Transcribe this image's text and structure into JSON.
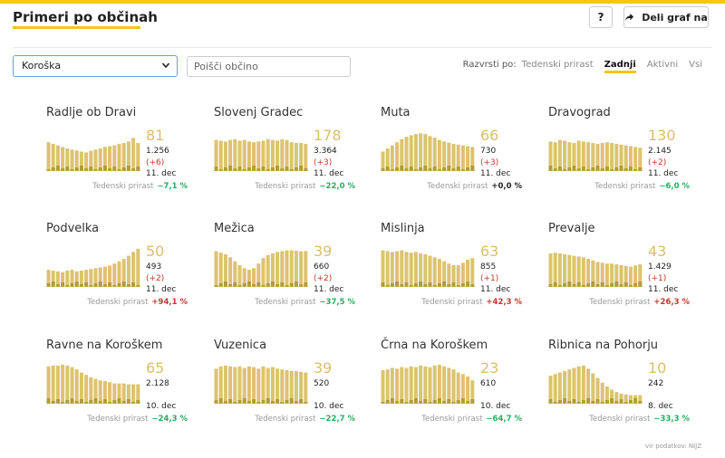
{
  "header": {
    "title": "Primeri po občinah",
    "help_label": "?",
    "share_label": "Deli graf na"
  },
  "filters": {
    "region_selected": "Koroška",
    "search_placeholder": "Poišči občino"
  },
  "sort": {
    "label": "Razvrsti po:",
    "options": [
      "Tedenski prirast",
      "Zadnji",
      "Aktivni",
      "Vsi"
    ],
    "active": "Zadnji"
  },
  "weekly_label": "Tedenski prirast",
  "colors": {
    "accent": "#f5c518",
    "bar": "#dcc36e",
    "bar_dark": "#b39a3a",
    "down": "#27ae60",
    "up": "#c0392b"
  },
  "cards": [
    {
      "name": "Radlje ob Dravi",
      "value": "81",
      "total": "1.256",
      "delta": "(+6)",
      "date": "11. dec",
      "weekly": "−7,1 %",
      "trend": "down",
      "series": [
        0.74,
        0.7,
        0.66,
        0.62,
        0.58,
        0.55,
        0.53,
        0.5,
        0.48,
        0.52,
        0.55,
        0.58,
        0.62,
        0.64,
        0.66,
        0.7,
        0.72,
        0.76,
        0.85,
        0.72
      ]
    },
    {
      "name": "Slovenj Gradec",
      "value": "178",
      "total": "3.364",
      "delta": "(+3)",
      "date": "11. dec",
      "weekly": "−22,0 %",
      "trend": "down",
      "series": [
        0.8,
        0.78,
        0.76,
        0.8,
        0.82,
        0.78,
        0.8,
        0.76,
        0.74,
        0.76,
        0.78,
        0.82,
        0.8,
        0.78,
        0.82,
        0.8,
        0.74,
        0.72,
        0.72,
        0.7
      ]
    },
    {
      "name": "Muta",
      "value": "66",
      "total": "730",
      "delta": "(+3)",
      "date": "11. dec",
      "weekly": "+0,0 %",
      "trend": "flat",
      "series": [
        0.5,
        0.58,
        0.66,
        0.74,
        0.82,
        0.88,
        0.92,
        0.95,
        0.97,
        0.95,
        0.9,
        0.86,
        0.8,
        0.76,
        0.73,
        0.7,
        0.68,
        0.66,
        0.64,
        0.62
      ]
    },
    {
      "name": "Dravograd",
      "value": "130",
      "total": "2.145",
      "delta": "(+2)",
      "date": "11. dec",
      "weekly": "−6,0 %",
      "trend": "down",
      "series": [
        0.76,
        0.74,
        0.8,
        0.78,
        0.74,
        0.72,
        0.78,
        0.76,
        0.74,
        0.72,
        0.7,
        0.72,
        0.74,
        0.72,
        0.7,
        0.68,
        0.66,
        0.64,
        0.62,
        0.6
      ]
    },
    {
      "name": "Podvelka",
      "value": "50",
      "total": "493",
      "delta": "(+2)",
      "date": "11. dec",
      "weekly": "+94,1 %",
      "trend": "up",
      "series": [
        0.44,
        0.42,
        0.4,
        0.38,
        0.42,
        0.44,
        0.4,
        0.42,
        0.44,
        0.46,
        0.48,
        0.5,
        0.52,
        0.55,
        0.6,
        0.66,
        0.72,
        0.8,
        0.9,
        0.98
      ]
    },
    {
      "name": "Mežica",
      "value": "39",
      "total": "660",
      "delta": "(+2)",
      "date": "11. dec",
      "weekly": "−37,5 %",
      "trend": "down",
      "series": [
        0.92,
        0.88,
        0.84,
        0.76,
        0.66,
        0.56,
        0.48,
        0.44,
        0.48,
        0.6,
        0.74,
        0.82,
        0.86,
        0.9,
        0.92,
        0.94,
        0.94,
        0.93,
        0.92,
        0.92
      ]
    },
    {
      "name": "Mislinja",
      "value": "63",
      "total": "855",
      "delta": "(+1)",
      "date": "11. dec",
      "weekly": "+42,3 %",
      "trend": "up",
      "series": [
        0.94,
        0.92,
        0.9,
        0.92,
        0.94,
        0.9,
        0.88,
        0.9,
        0.86,
        0.84,
        0.8,
        0.76,
        0.72,
        0.66,
        0.6,
        0.56,
        0.56,
        0.62,
        0.7,
        0.74
      ]
    },
    {
      "name": "Prevalje",
      "value": "43",
      "total": "1.429",
      "delta": "(+1)",
      "date": "11. dec",
      "weekly": "+26,3 %",
      "trend": "up",
      "series": [
        0.86,
        0.88,
        0.86,
        0.84,
        0.82,
        0.8,
        0.78,
        0.76,
        0.72,
        0.68,
        0.64,
        0.62,
        0.6,
        0.6,
        0.58,
        0.56,
        0.54,
        0.52,
        0.55,
        0.58
      ]
    },
    {
      "name": "Ravne na Koroškem",
      "value": "65",
      "total": "2.128",
      "delta": "",
      "date": "10. dec",
      "weekly": "−24,3 %",
      "trend": "down",
      "series": [
        0.96,
        0.98,
        0.98,
        1.0,
        0.98,
        0.94,
        0.88,
        0.8,
        0.74,
        0.68,
        0.64,
        0.6,
        0.58,
        0.55,
        0.52,
        0.52,
        0.52,
        0.5,
        0.5,
        0.5
      ]
    },
    {
      "name": "Vuzenica",
      "value": "39",
      "total": "520",
      "delta": "",
      "date": "10. dec",
      "weekly": "−22,7 %",
      "trend": "down",
      "series": [
        0.9,
        0.96,
        0.98,
        0.96,
        0.94,
        0.96,
        0.92,
        0.96,
        0.94,
        0.9,
        0.96,
        0.92,
        0.94,
        0.9,
        0.88,
        0.86,
        0.84,
        0.84,
        0.82,
        0.8
      ]
    },
    {
      "name": "Črna na Koroškem",
      "value": "23",
      "total": "610",
      "delta": "",
      "date": "10. dec",
      "weekly": "−64,7 %",
      "trend": "down",
      "series": [
        0.86,
        0.88,
        0.92,
        0.9,
        0.94,
        0.92,
        0.96,
        0.94,
        0.98,
        0.96,
        0.94,
        0.98,
        1.0,
        0.96,
        0.92,
        0.88,
        0.8,
        0.76,
        0.7,
        0.6
      ]
    },
    {
      "name": "Ribnica na Pohorju",
      "value": "10",
      "total": "242",
      "delta": "",
      "date": "8. dec",
      "weekly": "−33,3 %",
      "trend": "down",
      "series": [
        0.72,
        0.76,
        0.8,
        0.84,
        0.88,
        0.92,
        0.96,
        0.98,
        0.9,
        0.78,
        0.66,
        0.54,
        0.44,
        0.36,
        0.3,
        0.26,
        0.24,
        0.22,
        0.22,
        0.22
      ]
    }
  ],
  "source": "vir podatkov: NIJZ"
}
